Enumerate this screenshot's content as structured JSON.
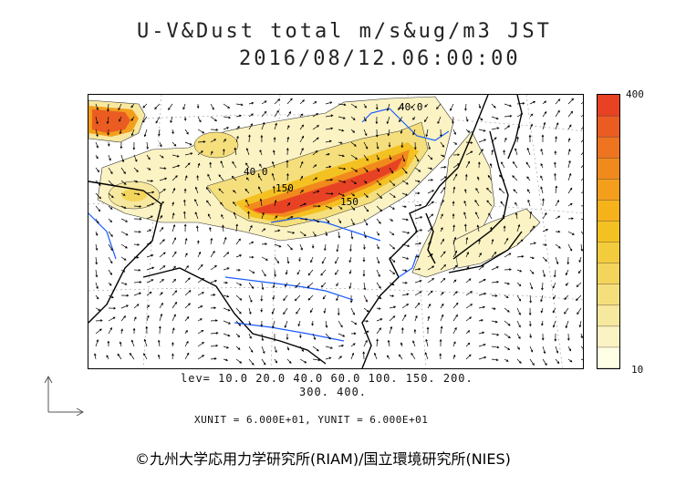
{
  "header": {
    "title": "U-V&Dust total m/s&ug/m3 JST",
    "datetime": "2016/08/12.06:00:00"
  },
  "colorbar": {
    "max_label": "400",
    "min_label": "10",
    "colors": [
      "#ffffe6",
      "#fbf3c4",
      "#f7e8a0",
      "#f5df7d",
      "#f4d55c",
      "#f3cc3e",
      "#f4c123",
      "#f5b21b",
      "#f39f1c",
      "#f18a1d",
      "#ee7420",
      "#eb5c22",
      "#e84224"
    ]
  },
  "contour_labels": {
    "a": "40.0",
    "b": "40.0",
    "c": "150",
    "d": "150"
  },
  "footer": {
    "levels_line1": "lev= 10.0 20.0 40.0 60.0 100. 150. 200.",
    "levels_line2": "300. 400.",
    "units": "XUNIT = 6.000E+01, YUNIT = 6.000E+01",
    "credit": "©九州大学応用力学研究所(RIAM)/国立環境研究所(NIES)"
  }
}
